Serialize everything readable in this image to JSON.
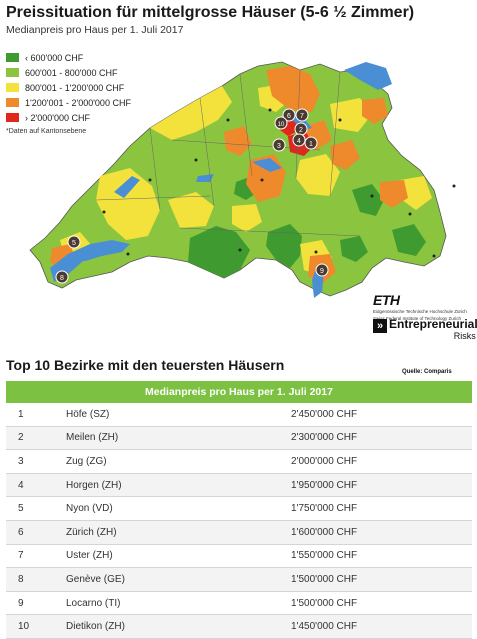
{
  "header": {
    "title": "Preissituation für mittelgrosse Häuser (5-6 ½ Zimmer)",
    "subtitle": "Medianpreis pro Haus per 1. Juli 2017"
  },
  "legend": {
    "items": [
      {
        "label": "‹ 600'000 CHF",
        "color": "#3f9a2f"
      },
      {
        "label": "600'001 - 800'000 CHF",
        "color": "#8bc53f"
      },
      {
        "label": "800'001 - 1'200'000 CHF",
        "color": "#f4e23c"
      },
      {
        "label": "1'200'001 - 2'000'000 CHF",
        "color": "#ee8a2c"
      },
      {
        "label": "› 2'000'000 CHF",
        "color": "#e1261c"
      }
    ],
    "footnote": "*Daten auf Kantonsebene"
  },
  "map": {
    "lake_color": "#4a8fd4",
    "pins": [
      "1",
      "2",
      "3",
      "4",
      "5",
      "6",
      "7",
      "8",
      "9",
      "10"
    ]
  },
  "logos": {
    "eth": "ETH",
    "eth_sub1": "Eidgenössische Technische Hochschule Zürich",
    "eth_sub2": "Swiss Federal Institute of Technology Zurich",
    "er_name": "Entrepreneurial",
    "er_risks": "Risks"
  },
  "top10": {
    "title": "Top 10 Bezirke mit den teuersten Häusern",
    "source": "Quelle: Comparis",
    "table_header": "Medianpreis pro Haus per 1. Juli 2017",
    "rows": [
      {
        "rank": "1",
        "district": "Höfe (SZ)",
        "price": "2'450'000 CHF"
      },
      {
        "rank": "2",
        "district": "Meilen (ZH)",
        "price": "2'300'000 CHF"
      },
      {
        "rank": "3",
        "district": "Zug (ZG)",
        "price": "2'000'000 CHF"
      },
      {
        "rank": "4",
        "district": "Horgen (ZH)",
        "price": "1'950'000 CHF"
      },
      {
        "rank": "5",
        "district": "Nyon (VD)",
        "price": "1'750'000 CHF"
      },
      {
        "rank": "6",
        "district": "Zürich (ZH)",
        "price": "1'600'000 CHF"
      },
      {
        "rank": "7",
        "district": "Uster (ZH)",
        "price": "1'550'000 CHF"
      },
      {
        "rank": "8",
        "district": "Genève (GE)",
        "price": "1'500'000 CHF"
      },
      {
        "rank": "9",
        "district": "Locarno (TI)",
        "price": "1'500'000 CHF"
      },
      {
        "rank": "10",
        "district": "Dietikon (ZH)",
        "price": "1'450'000 CHF"
      }
    ]
  }
}
